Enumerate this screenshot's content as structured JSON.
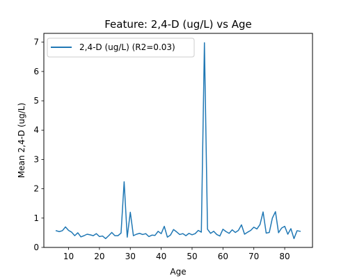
{
  "chart_data": {
    "type": "line",
    "title": "Feature: 2,4-D (ug/L) vs Age",
    "xlabel": "Age",
    "ylabel": "Mean 2,4-D (ug/L)",
    "xlim": [
      2,
      89
    ],
    "ylim": [
      0,
      7.3
    ],
    "xticks": [
      10,
      20,
      30,
      40,
      50,
      60,
      70,
      80
    ],
    "yticks": [
      0,
      1,
      2,
      3,
      4,
      5,
      6,
      7
    ],
    "grid": false,
    "legend_position": "top-left",
    "series": [
      {
        "name": "2,4-D (ug/L) (R2=0.03)",
        "color": "#1f77b4",
        "x": [
          6,
          7,
          8,
          9,
          10,
          11,
          12,
          13,
          14,
          15,
          16,
          17,
          18,
          19,
          20,
          21,
          22,
          23,
          24,
          25,
          26,
          27,
          28,
          29,
          30,
          31,
          32,
          33,
          34,
          35,
          36,
          37,
          38,
          39,
          40,
          41,
          42,
          43,
          44,
          45,
          46,
          47,
          48,
          49,
          50,
          51,
          52,
          53,
          54,
          55,
          56,
          57,
          58,
          59,
          60,
          61,
          62,
          63,
          64,
          65,
          66,
          67,
          68,
          69,
          70,
          71,
          72,
          73,
          74,
          75,
          76,
          77,
          78,
          79,
          80,
          81,
          82,
          83,
          84,
          85
        ],
        "y": [
          0.57,
          0.54,
          0.57,
          0.7,
          0.58,
          0.52,
          0.4,
          0.5,
          0.36,
          0.4,
          0.45,
          0.43,
          0.4,
          0.47,
          0.37,
          0.39,
          0.3,
          0.4,
          0.51,
          0.4,
          0.4,
          0.49,
          2.24,
          0.35,
          1.2,
          0.4,
          0.45,
          0.48,
          0.44,
          0.47,
          0.37,
          0.42,
          0.41,
          0.55,
          0.47,
          0.72,
          0.35,
          0.42,
          0.61,
          0.53,
          0.44,
          0.47,
          0.4,
          0.48,
          0.43,
          0.47,
          0.58,
          0.52,
          6.98,
          0.62,
          0.48,
          0.55,
          0.44,
          0.39,
          0.62,
          0.54,
          0.48,
          0.6,
          0.51,
          0.58,
          0.77,
          0.45,
          0.52,
          0.58,
          0.69,
          0.63,
          0.78,
          1.21,
          0.49,
          0.51,
          1.0,
          1.22,
          0.5,
          0.66,
          0.72,
          0.45,
          0.64,
          0.3,
          0.57,
          0.55
        ]
      }
    ]
  }
}
